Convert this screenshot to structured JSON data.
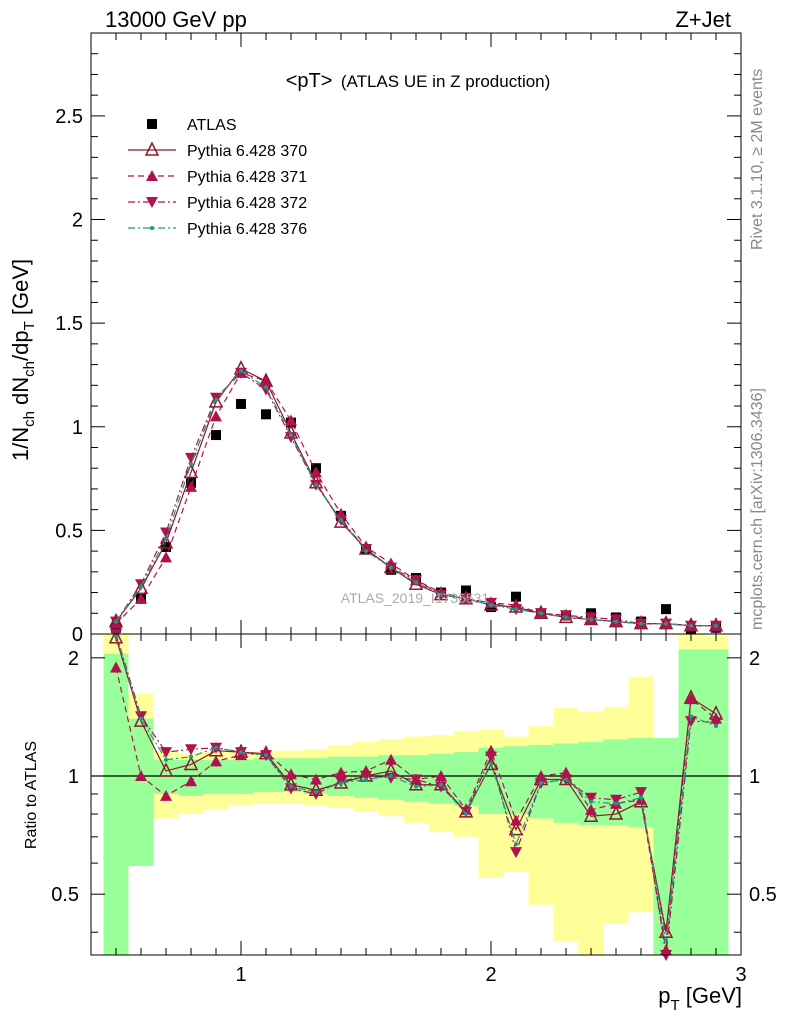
{
  "header": {
    "left": "13000 GeV pp",
    "right": "Z+Jet"
  },
  "side_labels": {
    "rivet": "Rivet 3.1.10, ≥ 2M events",
    "mcplots": "mcplots.cern.ch [arXiv:1306.3436]"
  },
  "chart_data": [
    {
      "type": "scatter",
      "title": "<pT>",
      "subtitle": "(ATLAS UE in Z production)",
      "watermark": "ATLAS_2019_I1736531",
      "ylabel": "1/N_ch dN_ch/dp_T [GeV]",
      "ylabel_parts": {
        "main": "1/N",
        "sub1": "ch",
        "mid": " dN",
        "sub2": "ch",
        "mid2": "/dp",
        "sub3": "T",
        "unit": " [GeV]"
      },
      "xlim": [
        0.4,
        3.0
      ],
      "ylim": [
        0,
        2.9
      ],
      "y_ticks": [
        0,
        0.5,
        1,
        1.5,
        2,
        2.5
      ],
      "y_tick_labels": [
        "0",
        "0.5",
        "1",
        "1.5",
        "2",
        "2.5"
      ],
      "legend_position": "top-left",
      "x": [
        0.5,
        0.6,
        0.7,
        0.8,
        0.9,
        1.0,
        1.1,
        1.2,
        1.3,
        1.4,
        1.5,
        1.6,
        1.7,
        1.8,
        1.9,
        2.0,
        2.1,
        2.2,
        2.3,
        2.4,
        2.5,
        2.6,
        2.7,
        2.8,
        2.9
      ],
      "series": [
        {
          "name": "ATLAS",
          "color": "#000000",
          "marker": "square",
          "line": "none",
          "values": [
            0.03,
            0.17,
            0.42,
            0.73,
            0.96,
            1.11,
            1.06,
            1.02,
            0.8,
            0.57,
            0.41,
            0.31,
            0.27,
            0.2,
            0.21,
            0.13,
            0.18,
            0.1,
            0.09,
            0.1,
            0.08,
            0.06,
            0.12,
            0.02,
            0.03
          ]
        },
        {
          "name": "Pythia 6.428 370",
          "color": "#8b1a2b",
          "marker": "triangle-up-open",
          "line": "solid",
          "values": [
            0.06,
            0.22,
            0.44,
            0.78,
            1.12,
            1.28,
            1.22,
            0.97,
            0.73,
            0.54,
            0.41,
            0.32,
            0.24,
            0.19,
            0.17,
            0.14,
            0.13,
            0.1,
            0.08,
            0.07,
            0.06,
            0.05,
            0.05,
            0.04,
            0.04
          ]
        },
        {
          "name": "Pythia 6.428 371",
          "color": "#b0124e",
          "marker": "triangle-up",
          "line": "dashed",
          "values": [
            0.05,
            0.17,
            0.37,
            0.71,
            1.05,
            1.26,
            1.22,
            1.03,
            0.78,
            0.58,
            0.42,
            0.34,
            0.26,
            0.2,
            0.17,
            0.15,
            0.14,
            0.1,
            0.09,
            0.07,
            0.06,
            0.05,
            0.05,
            0.04,
            0.04
          ]
        },
        {
          "name": "Pythia 6.428 372",
          "color": "#b0124e",
          "marker": "triangle-down",
          "line": "dashdot",
          "values": [
            0.06,
            0.24,
            0.49,
            0.85,
            1.14,
            1.26,
            1.18,
            0.95,
            0.72,
            0.55,
            0.41,
            0.32,
            0.26,
            0.19,
            0.17,
            0.15,
            0.12,
            0.1,
            0.09,
            0.08,
            0.07,
            0.05,
            0.05,
            0.04,
            0.04
          ]
        },
        {
          "name": "Pythia 6.428 376",
          "color": "#1a9a88",
          "marker": "dot",
          "line": "dashdot",
          "values": [
            0.06,
            0.23,
            0.46,
            0.82,
            1.13,
            1.27,
            1.19,
            0.96,
            0.72,
            0.55,
            0.4,
            0.32,
            0.25,
            0.19,
            0.17,
            0.14,
            0.12,
            0.1,
            0.08,
            0.07,
            0.06,
            0.05,
            0.05,
            0.04,
            0.04
          ]
        }
      ]
    },
    {
      "type": "scatter",
      "ylabel": "Ratio to ATLAS",
      "xlabel": "p_T [GeV]",
      "xlabel_parts": {
        "main": "p",
        "sub": "T",
        "unit": " [GeV]"
      },
      "xlim": [
        0.4,
        3.0
      ],
      "ylim": [
        0.35,
        2.3
      ],
      "x_ticks": [
        1,
        2,
        3
      ],
      "x_tick_labels": [
        "1",
        "2",
        "3"
      ],
      "y_ticks": [
        0.5,
        1,
        2
      ],
      "y_tick_labels": [
        "0.5",
        "1",
        "2"
      ],
      "reference_line": 1,
      "bands": {
        "x_edges": [
          0.45,
          0.55,
          0.65,
          0.75,
          0.85,
          0.95,
          1.05,
          1.15,
          1.25,
          1.35,
          1.45,
          1.55,
          1.65,
          1.75,
          1.85,
          1.95,
          2.05,
          2.15,
          2.25,
          2.35,
          2.45,
          2.55,
          2.65,
          2.75,
          2.85,
          2.95
        ],
        "green_color": "#99ff99",
        "yellow_color": "#ffff99",
        "green_lo": [
          0.35,
          0.59,
          0.9,
          0.89,
          0.9,
          0.9,
          0.91,
          0.91,
          0.9,
          0.89,
          0.88,
          0.87,
          0.86,
          0.85,
          0.84,
          0.8,
          0.8,
          0.78,
          0.76,
          0.75,
          0.75,
          0.74,
          0.35,
          0.35,
          0.35
        ],
        "green_hi": [
          2.05,
          1.4,
          1.1,
          1.1,
          1.1,
          1.1,
          1.11,
          1.11,
          1.11,
          1.12,
          1.12,
          1.13,
          1.13,
          1.14,
          1.15,
          1.18,
          1.19,
          1.2,
          1.21,
          1.22,
          1.24,
          1.25,
          1.25,
          2.1,
          2.1
        ],
        "yellow_lo": [
          0.35,
          0.59,
          0.78,
          0.8,
          0.82,
          0.84,
          0.85,
          0.85,
          0.84,
          0.83,
          0.81,
          0.79,
          0.76,
          0.72,
          0.7,
          0.55,
          0.57,
          0.47,
          0.38,
          0.35,
          0.42,
          0.45,
          0.35,
          0.35,
          0.35
        ],
        "yellow_hi": [
          2.3,
          1.62,
          1.16,
          1.14,
          1.15,
          1.15,
          1.16,
          1.16,
          1.17,
          1.2,
          1.22,
          1.24,
          1.26,
          1.27,
          1.3,
          1.31,
          1.26,
          1.34,
          1.49,
          1.46,
          1.5,
          1.79,
          1.19,
          2.3,
          2.28
        ]
      },
      "x": [
        0.5,
        0.6,
        0.7,
        0.8,
        0.9,
        1.0,
        1.1,
        1.2,
        1.3,
        1.4,
        1.5,
        1.6,
        1.7,
        1.8,
        1.9,
        2.0,
        2.1,
        2.2,
        2.3,
        2.4,
        2.5,
        2.6,
        2.7,
        2.8,
        2.9
      ],
      "series": [
        {
          "name": "Pythia 6.428 370",
          "color": "#8b1a2b",
          "marker": "triangle-up-open",
          "line": "solid",
          "values": [
            2.25,
            1.38,
            1.03,
            1.07,
            1.16,
            1.15,
            1.14,
            0.95,
            0.92,
            0.96,
            1.0,
            1.03,
            0.95,
            0.95,
            0.81,
            1.07,
            0.73,
            0.98,
            0.98,
            0.79,
            0.8,
            0.86,
            0.4,
            1.58,
            1.44
          ]
        },
        {
          "name": "Pythia 6.428 371",
          "color": "#b0124e",
          "marker": "triangle-up",
          "line": "dashed",
          "values": [
            1.89,
            1.0,
            0.89,
            0.97,
            1.09,
            1.13,
            1.15,
            1.01,
            0.98,
            1.02,
            1.03,
            1.1,
            0.98,
            1.0,
            0.82,
            1.16,
            0.77,
            1.0,
            1.02,
            0.82,
            0.85,
            0.87,
            0.36,
            1.57,
            1.4
          ]
        },
        {
          "name": "Pythia 6.428 372",
          "color": "#b0124e",
          "marker": "triangle-down",
          "line": "dashdot",
          "values": [
            2.31,
            1.42,
            1.15,
            1.17,
            1.18,
            1.15,
            1.13,
            0.93,
            0.9,
            0.97,
            1.0,
            0.99,
            0.98,
            0.94,
            0.81,
            1.12,
            0.64,
            0.96,
            0.98,
            0.88,
            0.87,
            0.91,
            0.35,
            1.38,
            1.37
          ]
        },
        {
          "name": "Pythia 6.428 376",
          "color": "#1a9a88",
          "marker": "dot",
          "line": "dashdot",
          "values": [
            2.28,
            1.4,
            1.1,
            1.12,
            1.18,
            1.15,
            1.13,
            0.94,
            0.91,
            0.96,
            0.98,
            1.0,
            0.94,
            0.95,
            0.8,
            1.08,
            0.67,
            0.96,
            0.98,
            0.86,
            0.85,
            0.88,
            0.38,
            1.42,
            1.34
          ]
        }
      ]
    }
  ]
}
